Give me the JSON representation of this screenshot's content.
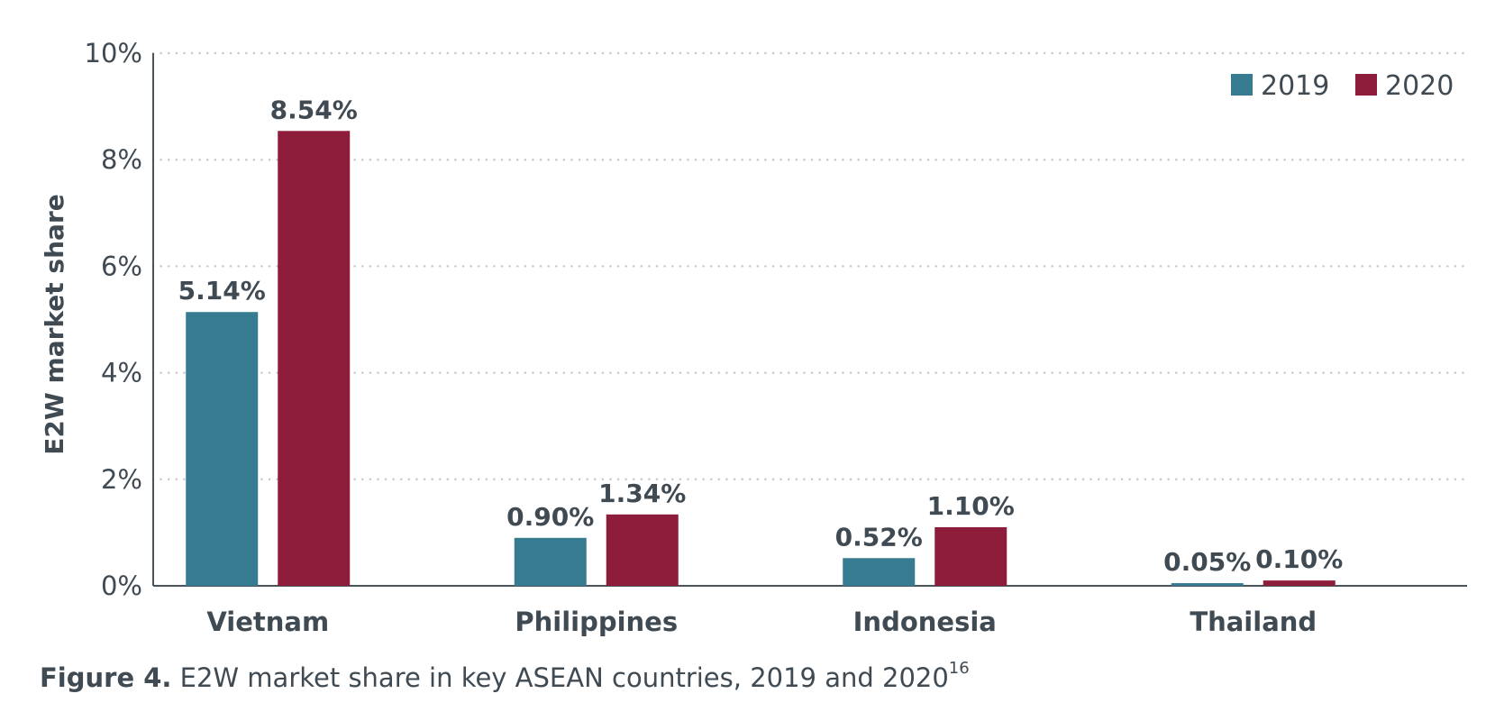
{
  "chart_data": {
    "type": "bar",
    "title": "",
    "xlabel": "",
    "ylabel": "E2W market share",
    "ylim": [
      0,
      10
    ],
    "yticks": [
      0,
      2,
      4,
      6,
      8,
      10
    ],
    "ytick_labels": [
      "0%",
      "2%",
      "4%",
      "6%",
      "8%",
      "10%"
    ],
    "grid": "horizontal dotted",
    "legend_position": "top-right",
    "categories": [
      "Vietnam",
      "Philippines",
      "Indonesia",
      "Thailand"
    ],
    "series": [
      {
        "name": "2019",
        "color": "#367b90",
        "values": [
          5.14,
          0.9,
          0.52,
          0.05
        ],
        "labels": [
          "5.14%",
          "0.90%",
          "0.52%",
          "0.05%"
        ]
      },
      {
        "name": "2020",
        "color": "#8e1d3b",
        "values": [
          8.54,
          1.34,
          1.1,
          0.1
        ],
        "labels": [
          "8.54%",
          "1.34%",
          "1.10%",
          "0.10%"
        ]
      }
    ]
  },
  "caption": {
    "label": "Figure 4.",
    "text": " E2W market share in key ASEAN countries, 2019 and 2020",
    "footnote": "16"
  },
  "colors": {
    "text": "#3f4a53",
    "grid": "#c8cacc",
    "axis": "#4a545c"
  }
}
